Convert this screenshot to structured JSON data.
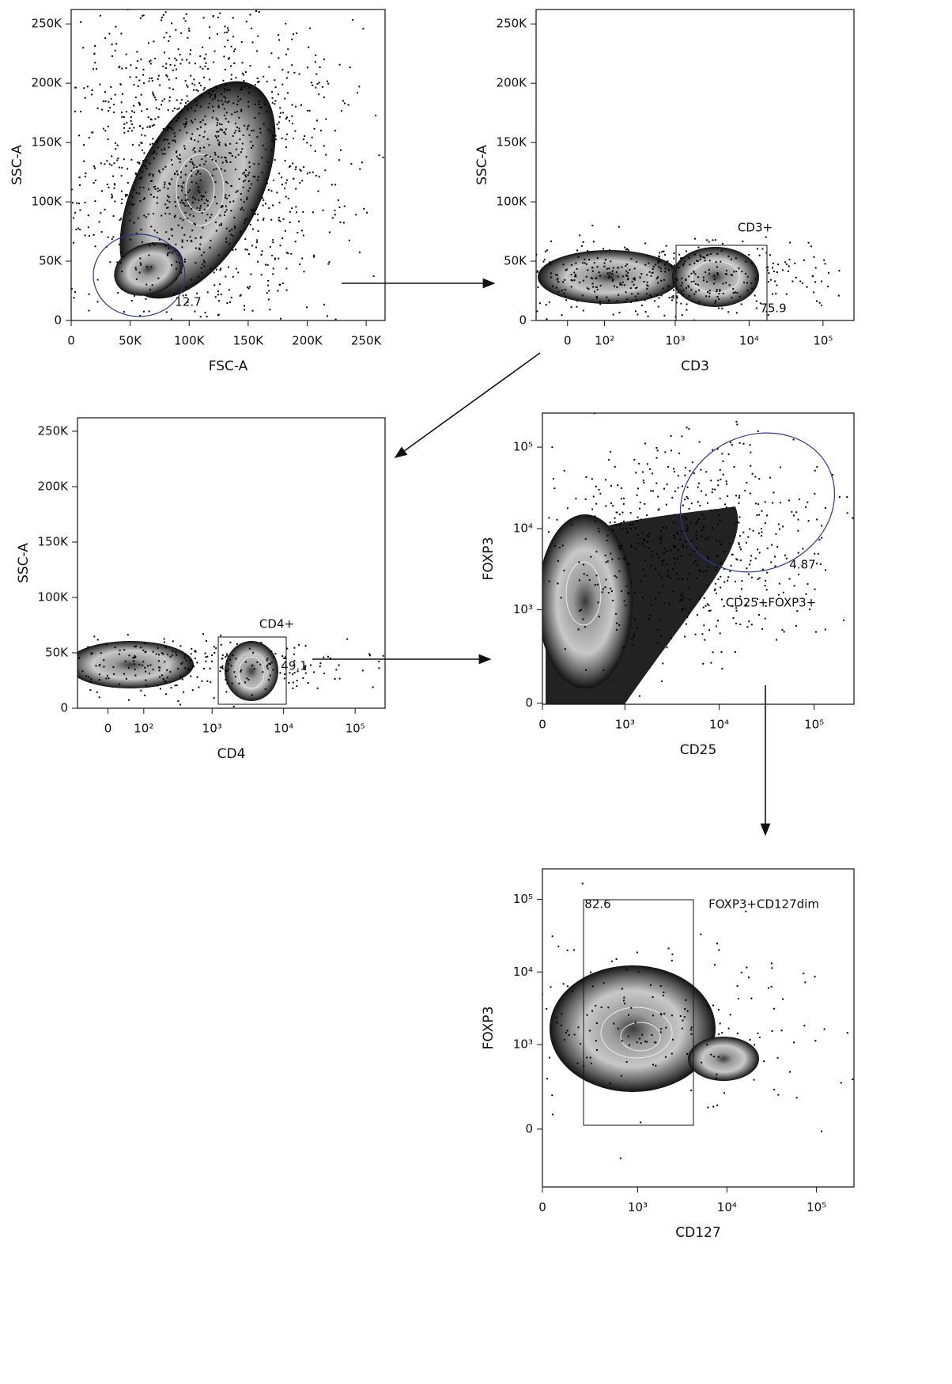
{
  "chart_data": [
    {
      "type": "scatter",
      "x_label": "FSC-A",
      "y_label": "SSC-A",
      "xscale": "linear",
      "yscale": "linear",
      "xlim": [
        0,
        266000
      ],
      "ylim": [
        0,
        262144
      ],
      "xticks": [
        0,
        {
          "value": 50000,
          "label": "50K"
        },
        {
          "value": 100000,
          "label": "100K"
        },
        {
          "value": 150000,
          "label": "150K"
        },
        {
          "value": 200000,
          "label": "200K"
        },
        {
          "value": 250000,
          "label": "250K"
        }
      ],
      "yticks": [
        0,
        {
          "value": 50000,
          "label": "50K"
        },
        {
          "value": 100000,
          "label": "100K"
        },
        {
          "value": 150000,
          "label": "150K"
        },
        {
          "value": 200000,
          "label": "200K"
        },
        {
          "value": 250000,
          "label": "250K"
        }
      ],
      "gate": {
        "value": 12.7
      }
    },
    {
      "type": "scatter",
      "x_label": "CD3",
      "y_label": "SSC-A",
      "xscale": "logicle",
      "yscale": "linear",
      "xlim": [
        -80,
        262144
      ],
      "ylim": [
        0,
        262144
      ],
      "xticks": [
        0,
        {
          "value": 100,
          "label": "10²"
        },
        {
          "value": 1000,
          "label": "10³"
        },
        {
          "value": 10000,
          "label": "10⁴"
        },
        {
          "value": 100000,
          "label": "10⁵"
        }
      ],
      "yticks": [
        0,
        {
          "value": 50000,
          "label": "50K"
        },
        {
          "value": 100000,
          "label": "100K"
        },
        {
          "value": 150000,
          "label": "150K"
        },
        {
          "value": 200000,
          "label": "200K"
        },
        {
          "value": 250000,
          "label": "250K"
        }
      ],
      "gate": {
        "name": "CD3+",
        "value": 75.9
      }
    },
    {
      "type": "scatter",
      "x_label": "CD4",
      "y_label": "SSC-A",
      "xscale": "logicle",
      "yscale": "linear",
      "xlim": [
        -80,
        262144
      ],
      "ylim": [
        0,
        262144
      ],
      "xticks": [
        0,
        {
          "value": 100,
          "label": "10²"
        },
        {
          "value": 1000,
          "label": "10³"
        },
        {
          "value": 10000,
          "label": "10⁴"
        },
        {
          "value": 100000,
          "label": "10⁵"
        }
      ],
      "yticks": [
        0,
        {
          "value": 50000,
          "label": "50K"
        },
        {
          "value": 100000,
          "label": "100K"
        },
        {
          "value": 150000,
          "label": "150K"
        },
        {
          "value": 200000,
          "label": "200K"
        },
        {
          "value": 250000,
          "label": "250K"
        }
      ],
      "gate": {
        "name": "CD4+",
        "value": 49.1
      }
    },
    {
      "type": "scatter",
      "x_label": "CD25",
      "y_label": "FOXP3",
      "xscale": "logicle",
      "yscale": "logicle",
      "xlim": [
        0,
        262144
      ],
      "ylim": [
        -5,
        262144
      ],
      "xticks": [
        0,
        {
          "value": 1000,
          "label": "10³"
        },
        {
          "value": 10000,
          "label": "10⁴"
        },
        {
          "value": 100000,
          "label": "10⁵"
        }
      ],
      "yticks": [
        0,
        {
          "value": 1000,
          "label": "10³"
        },
        {
          "value": 10000,
          "label": "10⁴"
        },
        {
          "value": 100000,
          "label": "10⁵"
        }
      ],
      "gate": {
        "name": "CD25+FOXP3+",
        "value": 4.87
      }
    },
    {
      "type": "scatter",
      "x_label": "CD127",
      "y_label": "FOXP3",
      "xscale": "logicle",
      "yscale": "logicle",
      "xlim": [
        0,
        262144
      ],
      "ylim": [
        -420,
        262144
      ],
      "xticks": [
        0,
        {
          "value": 1000,
          "label": "10³"
        },
        {
          "value": 10000,
          "label": "10⁴"
        },
        {
          "value": 100000,
          "label": "10⁵"
        }
      ],
      "yticks": [
        0,
        {
          "value": 1000,
          "label": "10³"
        },
        {
          "value": 10000,
          "label": "10⁴"
        },
        {
          "value": 100000,
          "label": "10⁵"
        }
      ],
      "gate": {
        "name": "FOXP3+CD127dim",
        "value": 82.6
      }
    }
  ]
}
